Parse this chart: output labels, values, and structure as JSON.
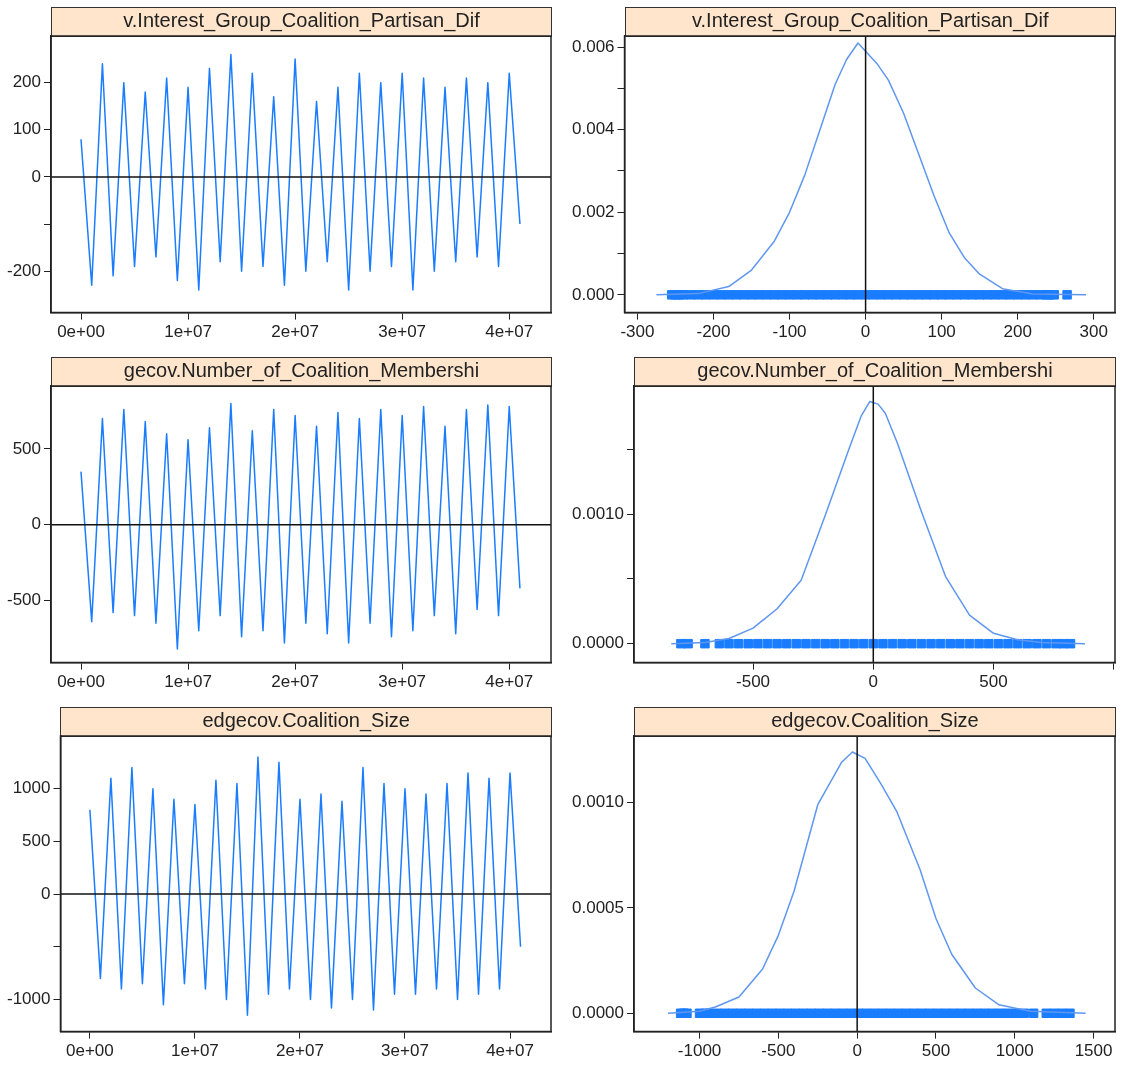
{
  "chart_data": [
    {
      "type": "line",
      "title": "v.Interest_Group_Coalition_Partisan_Dif",
      "xlim": [
        -2800000,
        43900000
      ],
      "xticks": [
        {
          "value": 0,
          "label": "0e+00"
        },
        {
          "value": 10000000,
          "label": "1e+07"
        },
        {
          "value": 20000000,
          "label": "2e+07"
        },
        {
          "value": 30000000,
          "label": "3e+07"
        },
        {
          "value": 40000000,
          "label": "4e+07"
        }
      ],
      "ylim": [
        -288,
        299
      ],
      "yticks": [
        -200,
        {
          "value": -100,
          "label": null
        },
        0,
        100,
        200
      ],
      "ref_lines": [
        {
          "axis": "y",
          "value": 0
        }
      ],
      "x": [
        0,
        1000000,
        2000000,
        3000000,
        4000000,
        5000000,
        6000000,
        7000000,
        8000000,
        9000000,
        10000000,
        11000000,
        12000000,
        13000000,
        14000000,
        15000000,
        16000000,
        17000000,
        18000000,
        19000000,
        20000000,
        21000000,
        22000000,
        23000000,
        24000000,
        25000000,
        26000000,
        27000000,
        28000000,
        29000000,
        30000000,
        31000000,
        32000000,
        33000000,
        34000000,
        35000000,
        36000000,
        37000000,
        38000000,
        39000000,
        40000000,
        41000000
      ],
      "series": [
        {
          "color": "#1a7dff",
          "values": [
            80,
            -230,
            240,
            -210,
            200,
            -190,
            180,
            -170,
            210,
            -220,
            190,
            -240,
            230,
            -180,
            260,
            -200,
            220,
            -190,
            170,
            -230,
            250,
            -200,
            160,
            -180,
            190,
            -240,
            220,
            -200,
            200,
            -190,
            220,
            -240,
            210,
            -200,
            190,
            -180,
            210,
            -170,
            200,
            -190,
            220,
            -100
          ]
        }
      ]
    },
    {
      "type": "line",
      "title": "v.Interest_Group_Coalition_Partisan_Dif",
      "xlim": [
        -317,
        328
      ],
      "xticks": [
        -300,
        -200,
        -100,
        0,
        100,
        200,
        300
      ],
      "ylim": [
        -0.00043,
        0.00627
      ],
      "yticks": [
        {
          "value": 0,
          "label": "0.000"
        },
        {
          "value": 0.001,
          "label": null
        },
        {
          "value": 0.002,
          "label": "0.002"
        },
        {
          "value": 0.003,
          "label": null
        },
        {
          "value": 0.004,
          "label": "0.004"
        },
        {
          "value": 0.005,
          "label": null
        },
        {
          "value": 0.006,
          "label": "0.006"
        }
      ],
      "ref_lines": [
        {
          "axis": "x",
          "value": 0
        }
      ],
      "series": [
        {
          "type": "line",
          "color": "#5f97f0",
          "x": [
            -275,
            -220,
            -180,
            -150,
            -120,
            -100,
            -80,
            -60,
            -40,
            -25,
            -10,
            0,
            15,
            30,
            50,
            70,
            90,
            110,
            130,
            150,
            180,
            220,
            290
          ],
          "values": [
            0,
            3e-05,
            0.0002,
            0.0006,
            0.0013,
            0.002,
            0.0029,
            0.004,
            0.0051,
            0.0057,
            0.0061,
            0.0059,
            0.0056,
            0.0052,
            0.0044,
            0.0034,
            0.0024,
            0.0015,
            0.0009,
            0.0005,
            0.00015,
            2e-05,
            0
          ]
        },
        {
          "type": "scatter",
          "marker": "square",
          "color": "#1a7dff",
          "x": [
            -255,
            -250,
            -245,
            -240,
            -230,
            -220,
            -210,
            -200,
            -190,
            -180,
            -170,
            -160,
            -150,
            -140,
            -130,
            -120,
            -110,
            -100,
            -90,
            -80,
            -70,
            -60,
            -50,
            -40,
            -30,
            -20,
            -10,
            0,
            10,
            20,
            30,
            40,
            50,
            60,
            70,
            80,
            90,
            100,
            110,
            120,
            130,
            140,
            150,
            160,
            170,
            180,
            190,
            200,
            210,
            220,
            230,
            238,
            242,
            248,
            265
          ],
          "values": [
            0,
            0,
            0,
            0,
            0,
            0,
            0,
            0,
            0,
            0,
            0,
            0,
            0,
            0,
            0,
            0,
            0,
            0,
            0,
            0,
            0,
            0,
            0,
            0,
            0,
            0,
            0,
            0,
            0,
            0,
            0,
            0,
            0,
            0,
            0,
            0,
            0,
            0,
            0,
            0,
            0,
            0,
            0,
            0,
            0,
            0,
            0,
            0,
            0,
            0,
            0,
            0,
            0,
            0,
            0
          ]
        }
      ]
    },
    {
      "type": "line",
      "title": "gecov.Number_of_Coalition_Membershi",
      "xlim": [
        -2800000,
        43900000
      ],
      "xticks": [
        {
          "value": 0,
          "label": "0e+00"
        },
        {
          "value": 10000000,
          "label": "1e+07"
        },
        {
          "value": 20000000,
          "label": "2e+07"
        },
        {
          "value": 30000000,
          "label": "3e+07"
        },
        {
          "value": 40000000,
          "label": "4e+07"
        }
      ],
      "ylim": [
        -910,
        915
      ],
      "yticks": [
        -500,
        0,
        500
      ],
      "ref_lines": [
        {
          "axis": "y",
          "value": 0
        }
      ],
      "x": [
        0,
        1000000,
        2000000,
        3000000,
        4000000,
        5000000,
        6000000,
        7000000,
        8000000,
        9000000,
        10000000,
        11000000,
        12000000,
        13000000,
        14000000,
        15000000,
        16000000,
        17000000,
        18000000,
        19000000,
        20000000,
        21000000,
        22000000,
        23000000,
        24000000,
        25000000,
        26000000,
        27000000,
        28000000,
        29000000,
        30000000,
        31000000,
        32000000,
        33000000,
        34000000,
        35000000,
        36000000,
        37000000,
        38000000,
        39000000,
        40000000,
        41000000
      ],
      "series": [
        {
          "color": "#1a7dff",
          "values": [
            350,
            -640,
            700,
            -580,
            760,
            -600,
            680,
            -650,
            600,
            -820,
            560,
            -700,
            640,
            -600,
            800,
            -740,
            620,
            -700,
            760,
            -780,
            720,
            -650,
            650,
            -720,
            740,
            -780,
            700,
            -650,
            760,
            -740,
            720,
            -700,
            780,
            -600,
            650,
            -720,
            760,
            -560,
            790,
            -600,
            780,
            -420
          ]
        }
      ]
    },
    {
      "type": "line",
      "title": "gecov.Number_of_Coalition_Membershi",
      "xlim": [
        -995,
        1005
      ],
      "xticks": [
        -500,
        0,
        500,
        {
          "value": 1000,
          "label": null
        }
      ],
      "ylim": [
        -0.000146,
        0.00199
      ],
      "yticks": [
        {
          "value": 0,
          "label": "0.0000"
        },
        {
          "value": 0.0005,
          "label": null
        },
        {
          "value": 0.001,
          "label": "0.0010"
        },
        {
          "value": 0.0015,
          "label": null
        }
      ],
      "ref_lines": [
        {
          "axis": "x",
          "value": 0
        }
      ],
      "series": [
        {
          "type": "line",
          "color": "#5f97f0",
          "x": [
            -840,
            -700,
            -600,
            -500,
            -400,
            -300,
            -200,
            -100,
            -50,
            -15,
            20,
            50,
            100,
            200,
            300,
            400,
            500,
            600,
            700,
            880
          ],
          "values": [
            0,
            1e-05,
            4e-05,
            0.00012,
            0.00027,
            0.00049,
            0.00099,
            0.00151,
            0.00176,
            0.00187,
            0.00185,
            0.00178,
            0.00155,
            0.00102,
            0.00052,
            0.00022,
            8e-05,
            3e-05,
            1e-05,
            0
          ]
        },
        {
          "type": "scatter",
          "marker": "square",
          "color": "#1a7dff",
          "x": [
            -800,
            -770,
            -700,
            -640,
            -600,
            -560,
            -520,
            -480,
            -440,
            -400,
            -360,
            -320,
            -280,
            -240,
            -200,
            -160,
            -120,
            -80,
            -40,
            0,
            40,
            80,
            120,
            160,
            200,
            240,
            280,
            320,
            360,
            400,
            440,
            480,
            520,
            560,
            600,
            640,
            680,
            720,
            760,
            790,
            820
          ],
          "values": [
            0,
            0,
            0,
            0,
            0,
            0,
            0,
            0,
            0,
            0,
            0,
            0,
            0,
            0,
            0,
            0,
            0,
            0,
            0,
            0,
            0,
            0,
            0,
            0,
            0,
            0,
            0,
            0,
            0,
            0,
            0,
            0,
            0,
            0,
            0,
            0,
            0,
            0,
            0,
            0,
            0
          ]
        }
      ]
    },
    {
      "type": "line",
      "title": "edgecov.Coalition_Size",
      "xlim": [
        -2800000,
        43900000
      ],
      "xticks": [
        {
          "value": 0,
          "label": "0e+00"
        },
        {
          "value": 10000000,
          "label": "1e+07"
        },
        {
          "value": 20000000,
          "label": "2e+07"
        },
        {
          "value": 30000000,
          "label": "3e+07"
        },
        {
          "value": 40000000,
          "label": "4e+07"
        }
      ],
      "ylim": [
        -1305,
        1500
      ],
      "yticks": [
        -1000,
        {
          "value": -500,
          "label": null
        },
        0,
        500,
        1000
      ],
      "ref_lines": [
        {
          "axis": "y",
          "value": 0
        }
      ],
      "x": [
        0,
        1000000,
        2000000,
        3000000,
        4000000,
        5000000,
        6000000,
        7000000,
        8000000,
        9000000,
        10000000,
        11000000,
        12000000,
        13000000,
        14000000,
        15000000,
        16000000,
        17000000,
        18000000,
        19000000,
        20000000,
        21000000,
        22000000,
        23000000,
        24000000,
        25000000,
        26000000,
        27000000,
        28000000,
        29000000,
        30000000,
        31000000,
        32000000,
        33000000,
        34000000,
        35000000,
        36000000,
        37000000,
        38000000,
        39000000,
        40000000,
        41000000
      ],
      "series": [
        {
          "color": "#1a7dff",
          "values": [
            800,
            -800,
            1100,
            -900,
            1200,
            -850,
            1000,
            -1050,
            900,
            -850,
            850,
            -900,
            1080,
            -1000,
            1050,
            -1150,
            1300,
            -950,
            1250,
            -900,
            900,
            -1000,
            950,
            -1080,
            880,
            -1000,
            1200,
            -1100,
            1050,
            -950,
            1000,
            -950,
            950,
            -900,
            1050,
            -1000,
            1150,
            -950,
            1100,
            -900,
            1150,
            -500
          ]
        }
      ]
    },
    {
      "type": "line",
      "title": "edgecov.Coalition_Size",
      "xlim": [
        -1416,
        1636
      ],
      "xticks": [
        -1000,
        -500,
        0,
        500,
        1000,
        1500
      ],
      "ylim": [
        -8.7e-05,
        0.001316
      ],
      "yticks": [
        {
          "value": 0,
          "label": "0.0000"
        },
        {
          "value": 0.0005,
          "label": "0.0005"
        },
        {
          "value": 0.001,
          "label": "0.0010"
        }
      ],
      "ref_lines": [
        {
          "axis": "x",
          "value": 0
        }
      ],
      "series": [
        {
          "type": "line",
          "color": "#5f97f0",
          "x": [
            -1200,
            -1000,
            -900,
            -750,
            -600,
            -500,
            -400,
            -250,
            -100,
            -30,
            50,
            150,
            250,
            400,
            500,
            600,
            750,
            900,
            1100,
            1450
          ],
          "values": [
            0,
            1e-05,
            3e-05,
            7.7e-05,
            0.00021,
            0.00037,
            0.00058,
            0.00099,
            0.00119,
            0.00124,
            0.00121,
            0.00109,
            0.00096,
            0.00068,
            0.00045,
            0.00028,
            0.00012,
            4e-05,
            1e-05,
            0
          ]
        },
        {
          "type": "scatter",
          "marker": "square",
          "color": "#1a7dff",
          "x": [
            -1120,
            -1100,
            -1080,
            -1000,
            -960,
            -940,
            -890,
            -840,
            -790,
            -740,
            -690,
            -640,
            -590,
            -540,
            -490,
            -440,
            -390,
            -340,
            -290,
            -240,
            -190,
            -140,
            -90,
            -40,
            10,
            60,
            110,
            160,
            210,
            260,
            310,
            360,
            410,
            460,
            510,
            560,
            610,
            660,
            710,
            760,
            810,
            860,
            910,
            960,
            1010,
            1060,
            1120,
            1200,
            1250,
            1300,
            1350
          ],
          "values": [
            0,
            0,
            0,
            0,
            0,
            0,
            0,
            0,
            0,
            0,
            0,
            0,
            0,
            0,
            0,
            0,
            0,
            0,
            0,
            0,
            0,
            0,
            0,
            0,
            0,
            0,
            0,
            0,
            0,
            0,
            0,
            0,
            0,
            0,
            0,
            0,
            0,
            0,
            0,
            0,
            0,
            0,
            0,
            0,
            0,
            0,
            0,
            0,
            0,
            0,
            0
          ]
        }
      ]
    }
  ]
}
